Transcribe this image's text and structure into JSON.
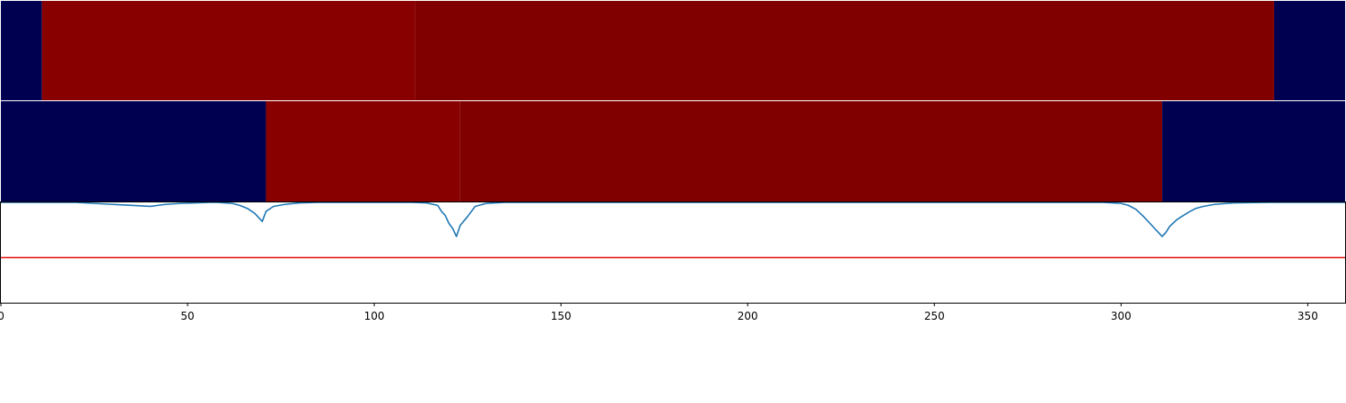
{
  "chart_data": [
    {
      "type": "heatmap",
      "panel": "top",
      "xlim": [
        0,
        360
      ],
      "segments": [
        {
          "x0": 0,
          "x1": 11,
          "color": "#000050"
        },
        {
          "x0": 11,
          "x1": 111,
          "color": "#890000"
        },
        {
          "x0": 111,
          "x1": 341,
          "color": "#800000"
        },
        {
          "x0": 341,
          "x1": 360,
          "color": "#000050"
        }
      ]
    },
    {
      "type": "heatmap",
      "panel": "middle",
      "xlim": [
        0,
        360
      ],
      "segments": [
        {
          "x0": 0,
          "x1": 71,
          "color": "#000050"
        },
        {
          "x0": 71,
          "x1": 123,
          "color": "#890000"
        },
        {
          "x0": 123,
          "x1": 311,
          "color": "#800000"
        },
        {
          "x0": 311,
          "x1": 360,
          "color": "#000050"
        }
      ]
    },
    {
      "type": "line",
      "panel": "bottom",
      "xlim": [
        0,
        360
      ],
      "ylim": [
        -0.45,
        0.55
      ],
      "xticks": [
        "0",
        "50",
        "100",
        "150",
        "200",
        "250",
        "300",
        "350"
      ],
      "xtick_values": [
        0,
        50,
        100,
        150,
        200,
        250,
        300,
        350
      ],
      "grid": false,
      "series": [
        {
          "color": "#1f77b4",
          "x": [
            0,
            20,
            25,
            30,
            35,
            40,
            42,
            44,
            48,
            52,
            56,
            58,
            60,
            62,
            64,
            66,
            68,
            70,
            71,
            73,
            76,
            80,
            85,
            90,
            100,
            110,
            114,
            117,
            118,
            119,
            120,
            121,
            122,
            123,
            125,
            127,
            130,
            135,
            150,
            200,
            230,
            250,
            262,
            280,
            295,
            300,
            302,
            304,
            306,
            308,
            309,
            310,
            311,
            312,
            313,
            315,
            318,
            320,
            322,
            325,
            330,
            340,
            360
          ],
          "y": [
            0.55,
            0.55,
            0.54,
            0.53,
            0.52,
            0.51,
            0.52,
            0.53,
            0.54,
            0.545,
            0.55,
            0.55,
            0.545,
            0.54,
            0.52,
            0.49,
            0.44,
            0.36,
            0.46,
            0.51,
            0.53,
            0.545,
            0.55,
            0.55,
            0.55,
            0.55,
            0.545,
            0.52,
            0.46,
            0.42,
            0.34,
            0.29,
            0.21,
            0.32,
            0.41,
            0.51,
            0.54,
            0.55,
            0.55,
            0.55,
            0.55,
            0.55,
            0.55,
            0.55,
            0.55,
            0.54,
            0.52,
            0.48,
            0.41,
            0.33,
            0.29,
            0.25,
            0.21,
            0.25,
            0.31,
            0.38,
            0.45,
            0.49,
            0.51,
            0.53,
            0.545,
            0.55,
            0.55
          ]
        },
        {
          "color": "#e31a1c",
          "x": [
            0,
            360
          ],
          "y": [
            0,
            0
          ]
        }
      ]
    }
  ]
}
